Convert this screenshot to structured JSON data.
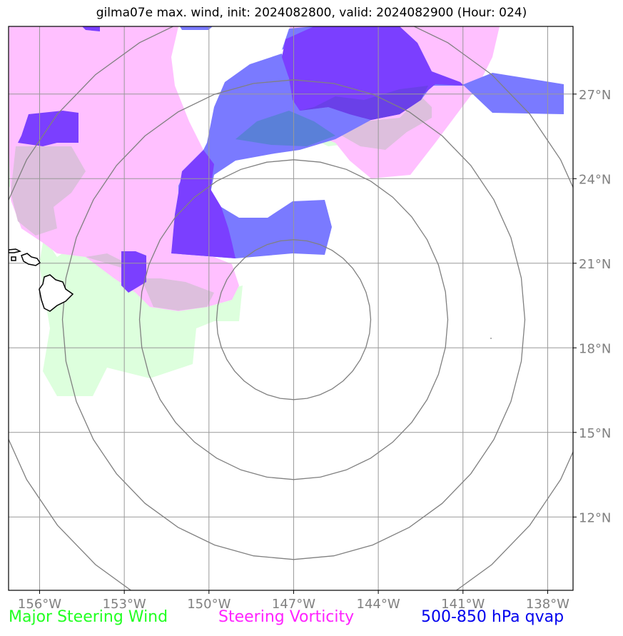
{
  "title": "gilma07e max. wind, init: 2024082800, valid: 2024082900 (Hour: 024)",
  "legend": {
    "wind": "Major Steering Wind",
    "vorticity": "Steering Vorticity",
    "qvap": "500-850 hPa qvap"
  },
  "axes": {
    "lon_labels": [
      "156°W",
      "153°W",
      "150°W",
      "147°W",
      "144°W",
      "141°W",
      "138°W"
    ],
    "lat_labels": [
      "27°N",
      "24°N",
      "21°N",
      "18°N",
      "15°N",
      "12°N"
    ],
    "lon_values": [
      -156,
      -153,
      -150,
      -147,
      -144,
      -141,
      -138
    ],
    "lat_values": [
      27,
      24,
      21,
      18,
      15,
      12
    ],
    "lon_range": [
      -157.1,
      -137.1
    ],
    "lat_range": [
      9.4,
      29.4
    ]
  },
  "storm_center": {
    "lon": -147,
    "lat": 19
  },
  "colors": {
    "wind": "#ddffdd",
    "vorticity": "#ffc0ff",
    "qvap_light": "#7a7aff",
    "qvap_dark": "#7b3fff",
    "grid": "#999999",
    "rings": "#808080"
  }
}
